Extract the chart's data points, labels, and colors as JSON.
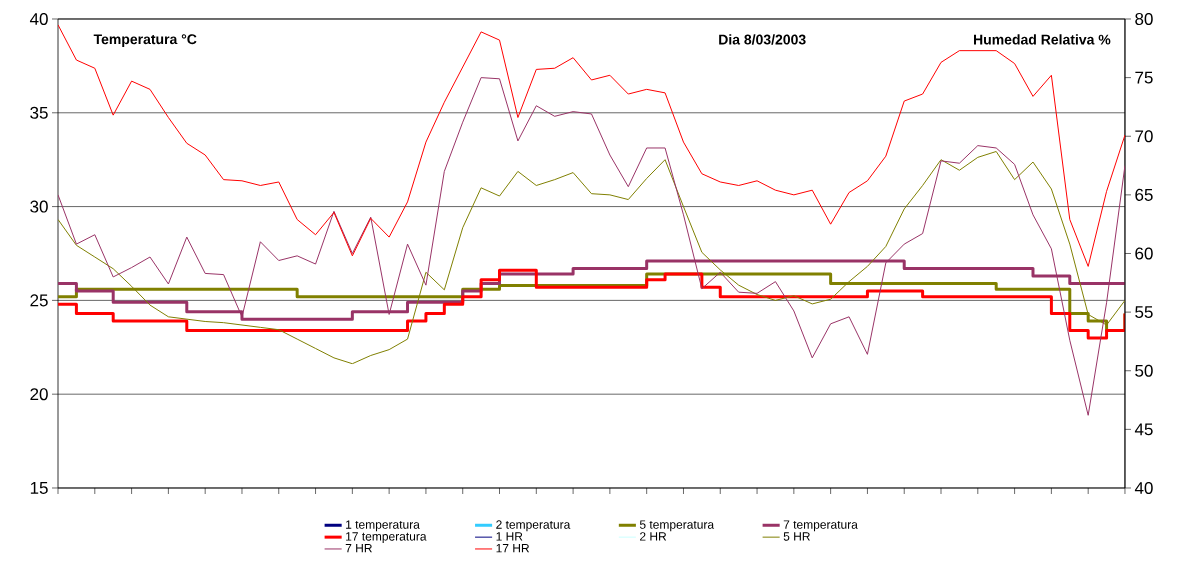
{
  "chart_data": {
    "type": "line",
    "title": "Dia 8/03/2003",
    "ylabel": "Temperatura °C",
    "y2label": "Humedad Relativa %",
    "categories": [
      null,
      null,
      null,
      null,
      null,
      null,
      null,
      null,
      null,
      null,
      null,
      null,
      null,
      null,
      null,
      null,
      null,
      null,
      null,
      null,
      null,
      null,
      null,
      null,
      null,
      null,
      null,
      null,
      null,
      null,
      null,
      null,
      null,
      null,
      null,
      null,
      null,
      null,
      null,
      null,
      null,
      null,
      null,
      null,
      null,
      null,
      null,
      null,
      null,
      null,
      null,
      null,
      null,
      null,
      null,
      null,
      null,
      null,
      null
    ],
    "ylim": [
      15,
      40
    ],
    "yticks": [
      15,
      20,
      25,
      30,
      35,
      40
    ],
    "y2lim": [
      40,
      80
    ],
    "y2ticks": [
      40,
      45,
      50,
      55,
      60,
      65,
      70,
      75,
      80
    ],
    "grid": "y",
    "legend": "bottom",
    "series": [
      {
        "name": "1 temperatura",
        "type": "step",
        "color": "#000080",
        "values": [
          null,
          null,
          null,
          null,
          null,
          null,
          null,
          null,
          null,
          null,
          null,
          null,
          null,
          null,
          null,
          null,
          null,
          null,
          null,
          null,
          null,
          null,
          null,
          null,
          null,
          null,
          null,
          null,
          null,
          null,
          null,
          null,
          null,
          null,
          null,
          null,
          null,
          null,
          null,
          null,
          null,
          null,
          null,
          null,
          null,
          null,
          null,
          null,
          null,
          null,
          null,
          null,
          null,
          null,
          null,
          null,
          null,
          null,
          null
        ]
      },
      {
        "name": "2 temperatura",
        "type": "step",
        "color": "#33ccff",
        "values": [
          null,
          null,
          null,
          null,
          null,
          null,
          null,
          null,
          null,
          null,
          null,
          null,
          null,
          null,
          null,
          null,
          null,
          null,
          null,
          null,
          null,
          null,
          null,
          null,
          null,
          null,
          null,
          null,
          null,
          null,
          null,
          null,
          null,
          null,
          null,
          null,
          null,
          null,
          null,
          null,
          null,
          null,
          null,
          null,
          null,
          null,
          null,
          null,
          null,
          null,
          null,
          null,
          null,
          null,
          null,
          null,
          null,
          null,
          null
        ]
      },
      {
        "name": "5 temperatura",
        "type": "step",
        "color": "#808000",
        "values": [
          25.2,
          25.6,
          25.6,
          25.6,
          25.6,
          25.6,
          25.6,
          25.6,
          25.6,
          25.6,
          25.6,
          25.6,
          25.6,
          25.2,
          25.2,
          25.2,
          25.2,
          25.2,
          25.2,
          25.2,
          25.2,
          25.2,
          25.6,
          25.6,
          25.8,
          25.8,
          25.8,
          25.8,
          25.8,
          25.8,
          25.8,
          25.8,
          26.4,
          26.4,
          26.4,
          26.4,
          26.4,
          26.4,
          26.4,
          26.4,
          26.4,
          26.4,
          25.9,
          25.9,
          25.9,
          25.9,
          25.9,
          25.9,
          25.9,
          25.9,
          25.9,
          25.6,
          25.6,
          25.6,
          25.6,
          24.3,
          23.9,
          23.4,
          24.3
        ]
      },
      {
        "name": "7 temperatura",
        "type": "step",
        "color": "#993366",
        "values": [
          25.9,
          25.5,
          25.5,
          24.9,
          24.9,
          24.9,
          24.9,
          24.4,
          24.4,
          24.4,
          24,
          24,
          24,
          24,
          24,
          24,
          24.4,
          24.4,
          24.4,
          24.9,
          24.9,
          24.9,
          25.5,
          25.9,
          26.4,
          26.4,
          26.4,
          26.4,
          26.7,
          26.7,
          26.7,
          26.7,
          27.1,
          27.1,
          27.1,
          27.1,
          27.1,
          27.1,
          27.1,
          27.1,
          27.1,
          27.1,
          27.1,
          27.1,
          27.1,
          27.1,
          26.7,
          26.7,
          26.7,
          26.7,
          26.7,
          26.7,
          26.7,
          26.3,
          26.3,
          25.9,
          25.9,
          25.9,
          25.9
        ]
      },
      {
        "name": "17 temperatura",
        "type": "step",
        "color": "#ff0000",
        "values": [
          24.8,
          24.3,
          24.3,
          23.9,
          23.9,
          23.9,
          23.9,
          23.4,
          23.4,
          23.4,
          23.4,
          23.4,
          23.4,
          23.4,
          23.4,
          23.4,
          23.4,
          23.4,
          23.4,
          23.9,
          24.3,
          24.8,
          25.2,
          26.1,
          26.6,
          26.6,
          25.7,
          25.7,
          25.7,
          25.7,
          25.7,
          25.7,
          26.1,
          26.4,
          26.4,
          25.7,
          25.2,
          25.2,
          25.2,
          25.2,
          25.2,
          25.2,
          25.2,
          25.2,
          25.5,
          25.5,
          25.5,
          25.2,
          25.2,
          25.2,
          25.2,
          25.2,
          25.2,
          25.2,
          24.3,
          23.4,
          23,
          23.4,
          24.3
        ]
      },
      {
        "name": "1 HR",
        "axis": "y2",
        "color": "#000080",
        "values": [
          null,
          null,
          null,
          null,
          null,
          null,
          null,
          null,
          null,
          null,
          null,
          null,
          null,
          null,
          null,
          null,
          null,
          null,
          null,
          null,
          null,
          null,
          null,
          null,
          null,
          null,
          null,
          null,
          null,
          null,
          null,
          null,
          null,
          null,
          null,
          null,
          null,
          null,
          null,
          null,
          null,
          null,
          null,
          null,
          null,
          null,
          null,
          null,
          null,
          null,
          null,
          null,
          null,
          null,
          null,
          null,
          null,
          null,
          null
        ]
      },
      {
        "name": "2 HR",
        "axis": "y2",
        "color": "#ccffff",
        "values": [
          null,
          null,
          null,
          null,
          null,
          null,
          null,
          null,
          null,
          null,
          null,
          null,
          null,
          null,
          null,
          null,
          null,
          null,
          null,
          null,
          null,
          null,
          null,
          null,
          null,
          null,
          null,
          null,
          null,
          null,
          null,
          null,
          null,
          null,
          null,
          null,
          null,
          null,
          null,
          null,
          null,
          null,
          null,
          null,
          null,
          null,
          null,
          null,
          null,
          null,
          null,
          null,
          null,
          null,
          null,
          null,
          null,
          null,
          null
        ]
      },
      {
        "name": "5 HR",
        "axis": "y2",
        "color": "#808000",
        "values": [
          62.9,
          60.7,
          59.7,
          58.7,
          57.2,
          55.6,
          54.6,
          54.4,
          54.2,
          54.1,
          53.9,
          53.7,
          53.5,
          52.7,
          51.9,
          51.1,
          50.6,
          51.3,
          51.8,
          52.7,
          58.4,
          56.9,
          62.2,
          65.6,
          64.9,
          67,
          65.8,
          66.3,
          66.9,
          65.1,
          65,
          64.6,
          66.4,
          68,
          64,
          60.1,
          58.6,
          57.3,
          56.5,
          56,
          56.4,
          55.7,
          56.1,
          57.6,
          58.9,
          60.6,
          63.8,
          65.8,
          68,
          67.1,
          68.2,
          68.7,
          66.3,
          67.8,
          65.5,
          60.8,
          54.8,
          53.9,
          56
        ]
      },
      {
        "name": "7 HR",
        "axis": "y2",
        "color": "#993366",
        "values": [
          65,
          60.8,
          61.6,
          58,
          58.8,
          59.7,
          57.4,
          61.4,
          58.3,
          58.2,
          54.6,
          61,
          59.4,
          59.8,
          59.1,
          63.6,
          60,
          63.1,
          54.8,
          60.8,
          57.3,
          67,
          71.2,
          75,
          74.9,
          69.6,
          72.6,
          71.7,
          72.1,
          71.9,
          68.4,
          65.7,
          69,
          69,
          63.3,
          57,
          58.4,
          56.7,
          56.6,
          57.6,
          55.1,
          51.1,
          54,
          54.6,
          51.4,
          59.2,
          60.8,
          61.7,
          67.9,
          67.7,
          69.2,
          69,
          67.6,
          63.3,
          60.4,
          52.6,
          46.2,
          55.8,
          67.5
        ]
      },
      {
        "name": "17 HR",
        "axis": "y2",
        "color": "#ff0000",
        "values": [
          79.5,
          76.5,
          75.8,
          71.8,
          74.7,
          74,
          71.6,
          69.4,
          68.4,
          66.3,
          66.2,
          65.8,
          66.1,
          62.9,
          61.6,
          63.5,
          59.8,
          63,
          61.4,
          64.4,
          69.5,
          72.9,
          75.9,
          78.9,
          78.2,
          71.6,
          75.7,
          75.8,
          76.7,
          74.8,
          75.2,
          73.6,
          74,
          73.7,
          69.5,
          66.8,
          66.1,
          65.8,
          66.2,
          65.4,
          65,
          65.4,
          62.5,
          65.2,
          66.2,
          68.3,
          73,
          73.6,
          76.3,
          77.3,
          77.3,
          77.3,
          76.2,
          73.4,
          75.2,
          62.9,
          58.9,
          65.3,
          70.1
        ]
      }
    ]
  }
}
